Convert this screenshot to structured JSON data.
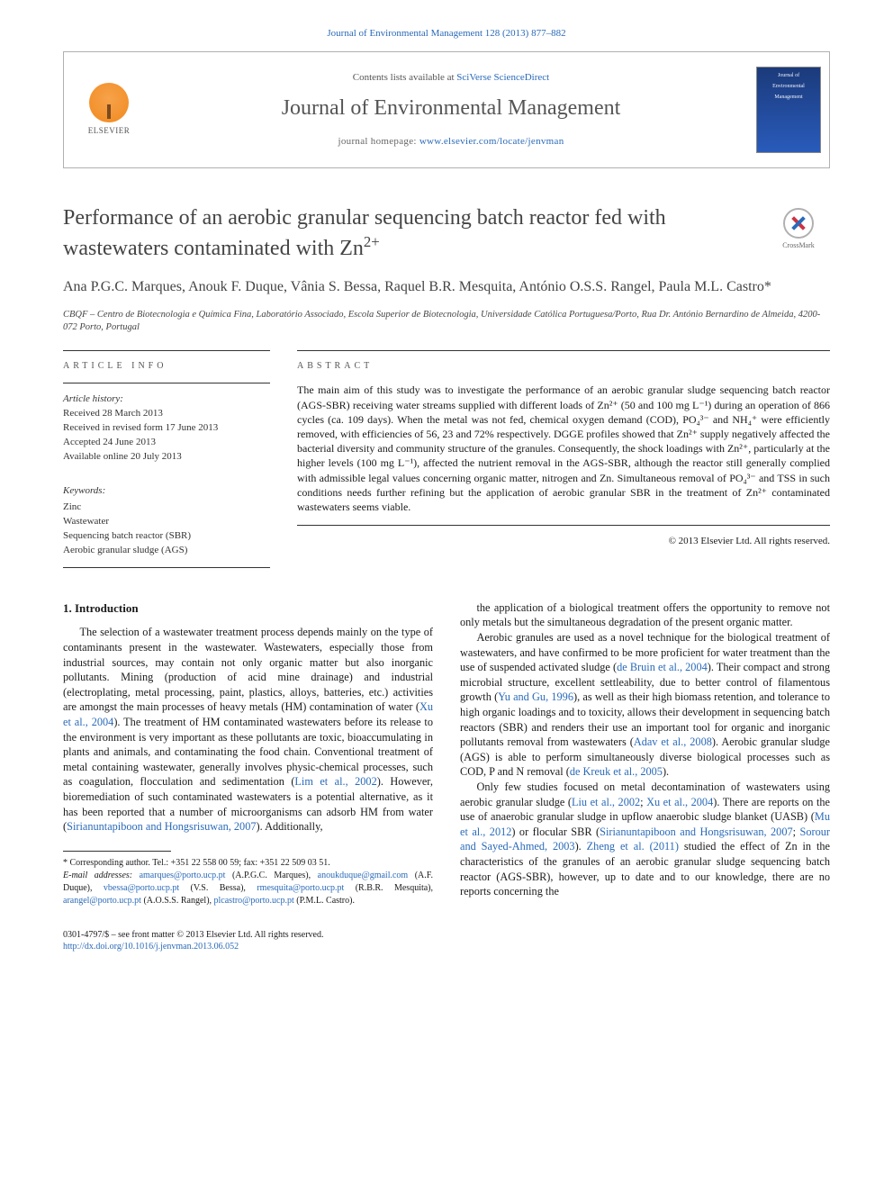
{
  "top_citation": "Journal of Environmental Management 128 (2013) 877–882",
  "header": {
    "contents_prefix": "Contents lists available at ",
    "contents_link": "SciVerse ScienceDirect",
    "journal_name": "Journal of Environmental Management",
    "homepage_prefix": "journal homepage: ",
    "homepage_url": "www.elsevier.com/locate/jenvman",
    "publisher_logo": "ELSEVIER",
    "cover_title_line1": "Journal of",
    "cover_title_line2": "Environmental",
    "cover_title_line3": "Management"
  },
  "title_html": "Performance of an aerobic granular sequencing batch reactor fed with wastewaters contaminated with Zn",
  "title_sup": "2+",
  "crossmark_label": "CrossMark",
  "authors": "Ana P.G.C. Marques, Anouk F. Duque, Vânia S. Bessa, Raquel B.R. Mesquita, António O.S.S. Rangel, Paula M.L. Castro*",
  "affiliation": "CBQF – Centro de Biotecnologia e Química Fina, Laboratório Associado, Escola Superior de Biotecnologia, Universidade Católica Portuguesa/Porto, Rua Dr. António Bernardino de Almeida, 4200-072 Porto, Portugal",
  "article_info": {
    "heading": "article info",
    "history_label": "Article history:",
    "received": "Received 28 March 2013",
    "revised": "Received in revised form 17 June 2013",
    "accepted": "Accepted 24 June 2013",
    "online": "Available online 20 July 2013",
    "keywords_label": "Keywords:",
    "keywords": [
      "Zinc",
      "Wastewater",
      "Sequencing batch reactor (SBR)",
      "Aerobic granular sludge (AGS)"
    ]
  },
  "abstract": {
    "heading": "abstract",
    "body": "The main aim of this study was to investigate the performance of an aerobic granular sludge sequencing batch reactor (AGS-SBR) receiving water streams supplied with different loads of Zn²⁺ (50 and 100 mg L⁻¹) during an operation of 866 cycles (ca. 109 days). When the metal was not fed, chemical oxygen demand (COD), PO₄³⁻ and NH₄⁺ were efficiently removed, with efficiencies of 56, 23 and 72% respectively. DGGE profiles showed that Zn²⁺ supply negatively affected the bacterial diversity and community structure of the granules. Consequently, the shock loadings with Zn²⁺, particularly at the higher levels (100 mg L⁻¹), affected the nutrient removal in the AGS-SBR, although the reactor still generally complied with admissible legal values concerning organic matter, nitrogen and Zn. Simultaneous removal of PO₄³⁻ and TSS in such conditions needs further refining but the application of aerobic granular SBR in the treatment of Zn²⁺ contaminated wastewaters seems viable.",
    "copyright": "© 2013 Elsevier Ltd. All rights reserved."
  },
  "body": {
    "section_number": "1.",
    "section_title": "Introduction",
    "col1": [
      "The selection of a wastewater treatment process depends mainly on the type of contaminants present in the wastewater. Wastewaters, especially those from industrial sources, may contain not only organic matter but also inorganic pollutants. Mining (production of acid mine drainage) and industrial (electroplating, metal processing, paint, plastics, alloys, batteries, etc.) activities are amongst the main processes of heavy metals (HM) contamination of water (Xu et al., 2004). The treatment of HM contaminated wastewaters before its release to the environment is very important as these pollutants are toxic, bioaccumulating in plants and animals, and contaminating the food chain. Conventional treatment of metal containing wastewater, generally involves physic-chemical processes, such as coagulation, flocculation and sedimentation (Lim et al., 2002). However, bioremediation of such contaminated wastewaters is a potential alternative, as it has been reported that a number of microorganisms can adsorb HM from water (Sirianuntapiboon and Hongsrisuwan, 2007). Additionally,"
    ],
    "col2": [
      "the application of a biological treatment offers the opportunity to remove not only metals but the simultaneous degradation of the present organic matter.",
      "Aerobic granules are used as a novel technique for the biological treatment of wastewaters, and have confirmed to be more proficient for water treatment than the use of suspended activated sludge (de Bruin et al., 2004). Their compact and strong microbial structure, excellent settleability, due to better control of filamentous growth (Yu and Gu, 1996), as well as their high biomass retention, and tolerance to high organic loadings and to toxicity, allows their development in sequencing batch reactors (SBR) and renders their use an important tool for organic and inorganic pollutants removal from wastewaters (Adav et al., 2008). Aerobic granular sludge (AGS) is able to perform simultaneously diverse biological processes such as COD, P and N removal (de Kreuk et al., 2005).",
      "Only few studies focused on metal decontamination of wastewaters using aerobic granular sludge (Liu et al., 2002; Xu et al., 2004). There are reports on the use of anaerobic granular sludge in upflow anaerobic sludge blanket (UASB) (Mu et al., 2012) or flocular SBR (Sirianuntapiboon and Hongsrisuwan, 2007; Sorour and Sayed-Ahmed, 2003). Zheng et al. (2011) studied the effect of Zn in the characteristics of the granules of an aerobic granular sludge sequencing batch reactor (AGS-SBR), however, up to date and to our knowledge, there are no reports concerning the"
    ]
  },
  "refs_inline": {
    "xu2004": "Xu et al., 2004",
    "lim2002": "Lim et al., 2002",
    "siri2007": "Sirianuntapiboon and Hongsrisuwan, 2007",
    "debruin2004": "de Bruin et al., 2004",
    "yu1996": "Yu and Gu, 1996",
    "adav2008": "Adav et al., 2008",
    "dekreuk2005": "de Kreuk et al., 2005",
    "liu2002": "Liu et al., 2002",
    "mu2012": "Mu et al., 2012",
    "sorour2003": "Sorour and Sayed-Ahmed, 2003",
    "zheng2011": "Zheng et al. (2011)"
  },
  "footnotes": {
    "corr_label": "* Corresponding author. Tel.: +351 22 558 00 59; fax: +351 22 509 03 51.",
    "emails_label": "E-mail addresses:",
    "emails": [
      {
        "addr": "amarques@porto.ucp.pt",
        "who": "(A.P.G.C. Marques)"
      },
      {
        "addr": "anoukduque@gmail.com",
        "who": "(A.F. Duque)"
      },
      {
        "addr": "vbessa@porto.ucp.pt",
        "who": "(V.S. Bessa)"
      },
      {
        "addr": "rmesquita@porto.ucp.pt",
        "who": "(R.B.R. Mesquita)"
      },
      {
        "addr": "arangel@porto.ucp.pt",
        "who": "(A.O.S.S. Rangel)"
      },
      {
        "addr": "plcastro@porto.ucp.pt",
        "who": "(P.M.L. Castro)"
      }
    ]
  },
  "footer": {
    "issn_line": "0301-4797/$ – see front matter © 2013 Elsevier Ltd. All rights reserved.",
    "doi": "http://dx.doi.org/10.1016/j.jenvman.2013.06.052"
  },
  "colors": {
    "link": "#2a6ab8",
    "rule": "#333333",
    "muted": "#555555",
    "cover_bg_top": "#1b3a7a",
    "cover_bg_bot": "#295bbb",
    "elsevier_orange": "#f08a1f"
  },
  "typography": {
    "body_pt": 12,
    "title_pt": 24,
    "journal_pt": 24,
    "authors_pt": 16,
    "small_pt": 10
  }
}
